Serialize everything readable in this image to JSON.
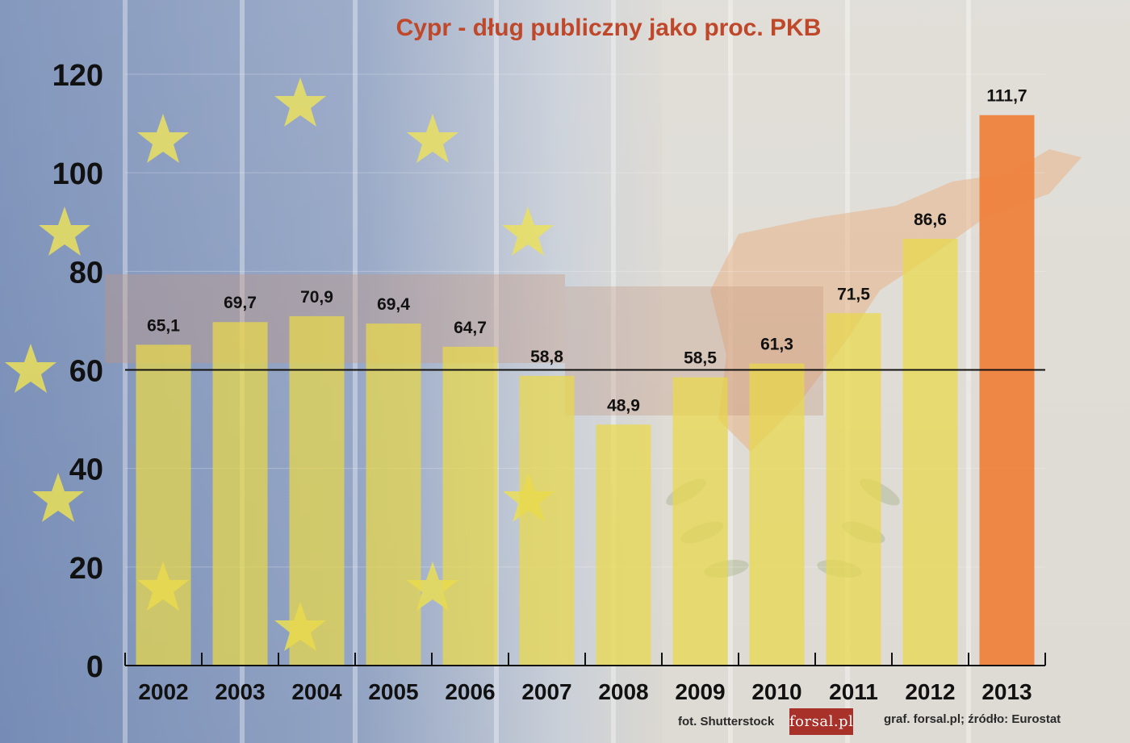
{
  "chart_data": {
    "type": "bar",
    "title": "Cypr - dług publiczny jako proc. PKB",
    "xlabel": "",
    "ylabel": "",
    "categories": [
      "2002",
      "2003",
      "2004",
      "2005",
      "2006",
      "2007",
      "2008",
      "2009",
      "2010",
      "2011",
      "2012",
      "2013"
    ],
    "values": [
      65.1,
      69.7,
      70.9,
      69.4,
      64.7,
      58.8,
      48.9,
      58.5,
      61.3,
      71.5,
      86.6,
      111.7
    ],
    "value_labels": [
      "65,1",
      "69,7",
      "70,9",
      "69,4",
      "64,7",
      "58,8",
      "48,9",
      "58,5",
      "61,3",
      "71,5",
      "86,6",
      "111,7"
    ],
    "ylim": [
      0,
      120
    ],
    "yticks": [
      0,
      20,
      40,
      60,
      80,
      100,
      120
    ],
    "reference_line": 60,
    "grid": true,
    "legend": "none",
    "colors": {
      "bar": "#e9d84a",
      "highlight_bar": "#ef7f3a",
      "title": "#c0482a",
      "reference_line": "#111111"
    },
    "highlight_index": 11
  },
  "footer": {
    "photo_credit": "fot. Shutterstock",
    "logo": "forsal.pl",
    "source": "graf. forsal.pl;  źródło: Eurostat"
  }
}
